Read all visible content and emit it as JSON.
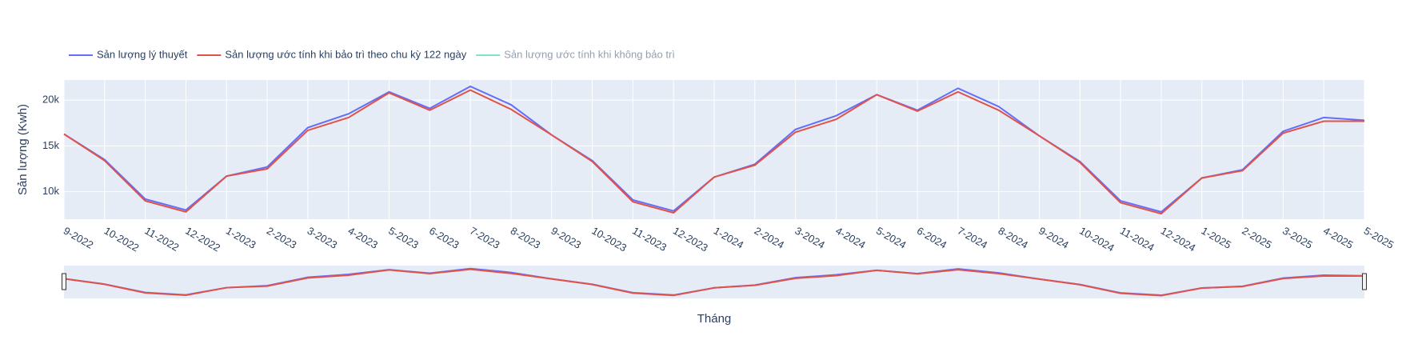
{
  "chart_data": {
    "type": "line",
    "x_label": "Tháng",
    "y_label": "Sản lượng (Kwh)",
    "categories": [
      "9-2022",
      "10-2022",
      "11-2022",
      "12-2022",
      "1-2023",
      "2-2023",
      "3-2023",
      "4-2023",
      "5-2023",
      "6-2023",
      "7-2023",
      "8-2023",
      "9-2023",
      "10-2023",
      "11-2023",
      "12-2023",
      "1-2024",
      "2-2024",
      "3-2024",
      "4-2024",
      "5-2024",
      "6-2024",
      "7-2024",
      "8-2024",
      "9-2024",
      "10-2024",
      "11-2024",
      "12-2024",
      "1-2025",
      "2-2025",
      "3-2025",
      "4-2025",
      "5-2025"
    ],
    "series": [
      {
        "name": "Sản lượng lý thuyết",
        "color": "#636efa",
        "visible": true,
        "values": [
          16300,
          13500,
          9200,
          8000,
          11700,
          12700,
          17000,
          18500,
          20900,
          19100,
          21500,
          19500,
          16200,
          13400,
          9100,
          7900,
          11600,
          13000,
          16800,
          18300,
          20600,
          18900,
          21300,
          19300,
          16100,
          13300,
          9000,
          7800,
          11500,
          12400,
          16600,
          18100,
          17800
        ]
      },
      {
        "name": "Sản lượng ước tính khi bảo trì theo chu kỳ 122 ngày",
        "color": "#e0524a",
        "visible": true,
        "values": [
          16300,
          13400,
          9000,
          7800,
          11700,
          12500,
          16700,
          18100,
          20800,
          18900,
          21100,
          19000,
          16200,
          13300,
          8900,
          7700,
          11600,
          12900,
          16500,
          17900,
          20600,
          18800,
          20900,
          18900,
          16100,
          13200,
          8800,
          7600,
          11500,
          12300,
          16400,
          17700,
          17700
        ]
      },
      {
        "name": "Sản lượng ước tính khi không bảo trì",
        "color": "#00cc96",
        "visible": false
      }
    ],
    "ylim": [
      7000,
      22200
    ],
    "yticks": [
      {
        "value": 10000,
        "label": "10k"
      },
      {
        "value": 15000,
        "label": "15k"
      },
      {
        "value": 20000,
        "label": "20k"
      }
    ],
    "grid": true,
    "range_slider": true
  }
}
